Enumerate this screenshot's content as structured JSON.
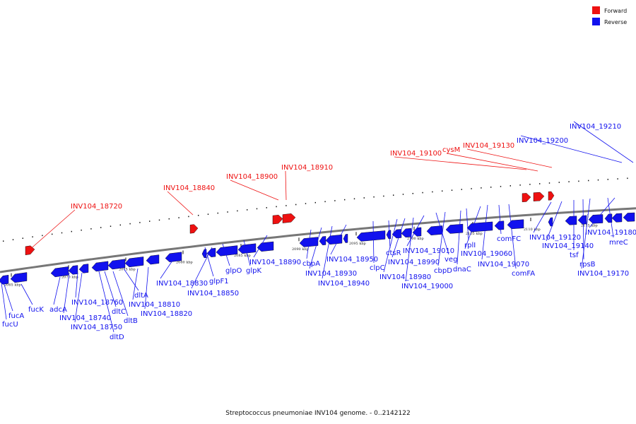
{
  "legend": {
    "forward": {
      "label": "Forward",
      "color": "#ee1111"
    },
    "reverse": {
      "label": "Reverse",
      "color": "#1111ee"
    }
  },
  "caption": "Streptococcus pneumoniae INV104 genome. - 0..2142122",
  "backbone_color": "#777777",
  "scale_ticks": [
    "2065 kbp",
    "2070 kbp",
    "2075 kbp",
    "2080 kbp",
    "2085 kbp",
    "2090 kbp",
    "2095 kbp",
    "2100 kbp",
    "2105 kbp",
    "2110 kbp",
    "2115 kbp"
  ],
  "forward_genes": [
    "INV104_18720",
    "INV104_18840",
    "INV104_18900",
    "INV104_18910",
    "INV104_19100",
    "cysM",
    "INV104_19130"
  ],
  "reverse_genes_top": [
    "INV104_19200",
    "INV104_19210"
  ],
  "reverse_genes": [
    "fucA",
    "fucU",
    "fucK",
    "adcA",
    "INV104_18760",
    "INV104_18740",
    "INV104_18750",
    "dltD",
    "dltC",
    "dltB",
    "dltA",
    "INV104_18810",
    "INV104_18820",
    "INV104_18830",
    "glpF1",
    "INV104_18850",
    "glpO",
    "glpK",
    "INV104_18890",
    "cbpA",
    "INV104_18930",
    "INV104_18940",
    "INV104_18950",
    "clpC",
    "ctsR",
    "INV104_18980",
    "INV104_18990",
    "INV104_19000",
    "INV104_19010",
    "veg",
    "cbpD",
    "rplI",
    "dnaC",
    "INV104_19060",
    "INV104_19070",
    "comFC",
    "comFA",
    "INV104_19120",
    "INV104_19140",
    "tsf",
    "rpsB",
    "INV104_19170",
    "mreC",
    "INV104_19180"
  ]
}
